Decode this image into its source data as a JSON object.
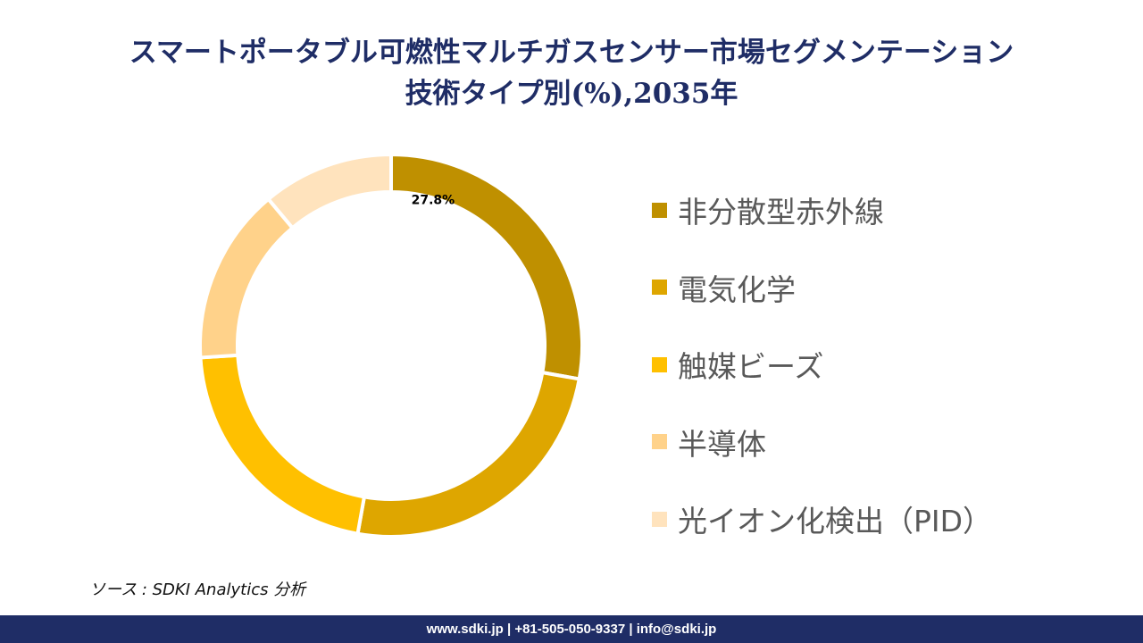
{
  "title": {
    "line1": "スマートポータブル可燃性マルチガスセンサー市場セグメンテーション",
    "line2": "技術タイプ別(%),2035年"
  },
  "chart_data": {
    "type": "pie",
    "style": "donut",
    "title": "スマートポータブル可燃性マルチガスセンサー市場セグメンテーション 技術タイプ別(%),2035年",
    "categories": [
      "非分散型赤外線",
      "電気化学",
      "触媒ビーズ",
      "半導体",
      "光イオン化検出（PID）"
    ],
    "values": [
      27.8,
      25.0,
      21.2,
      14.9,
      11.1
    ],
    "labeled_values": [
      "27.8%",
      "",
      "",
      "",
      ""
    ],
    "colors": [
      "#bf9000",
      "#dea600",
      "#ffc000",
      "#ffd28a",
      "#ffe3bd"
    ],
    "legend_position": "right"
  },
  "source": "ソース : SDKI Analytics 分析",
  "footer": "www.sdki.jp | +81-505-050-9337 | info@sdki.jp"
}
